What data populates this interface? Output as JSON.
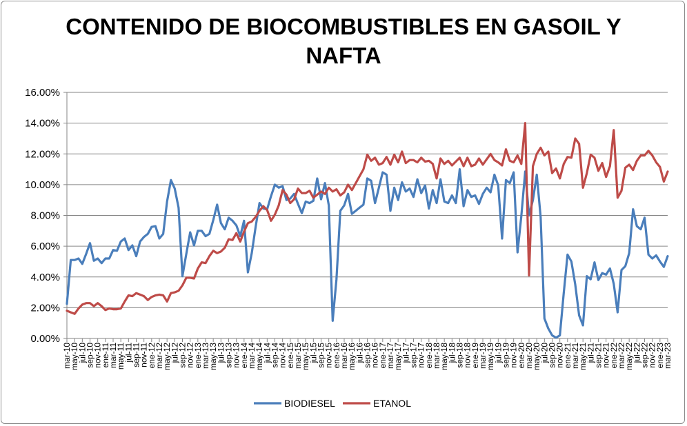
{
  "chart_data": {
    "type": "line",
    "title_lines": [
      "CONTENIDO DE BIOCOMBUSTIBLES EN GASOIL Y",
      "NAFTA"
    ],
    "xlabel": "",
    "ylabel": "",
    "ylim": [
      0,
      16
    ],
    "y_ticks": [
      "0.00%",
      "2.00%",
      "4.00%",
      "6.00%",
      "8.00%",
      "10.00%",
      "12.00%",
      "14.00%",
      "16.00%"
    ],
    "grid": true,
    "legend_position": "bottom",
    "x_tick_every": 2,
    "categories": [
      "mar-10",
      "abr-10",
      "may-10",
      "jun-10",
      "jul-10",
      "ago-10",
      "sep-10",
      "oct-10",
      "nov-10",
      "dic-10",
      "ene-11",
      "feb-11",
      "mar-11",
      "abr-11",
      "may-11",
      "jun-11",
      "jul-11",
      "ago-11",
      "sep-11",
      "oct-11",
      "nov-11",
      "dic-11",
      "ene-12",
      "feb-12",
      "mar-12",
      "abr-12",
      "may-12",
      "jun-12",
      "jul-12",
      "ago-12",
      "sep-12",
      "oct-12",
      "nov-12",
      "dic-12",
      "ene-13",
      "feb-13",
      "mar-13",
      "abr-13",
      "may-13",
      "jun-13",
      "jul-13",
      "ago-13",
      "sep-13",
      "oct-13",
      "nov-13",
      "dic-13",
      "ene-14",
      "feb-14",
      "mar-14",
      "abr-14",
      "may-14",
      "jun-14",
      "jul-14",
      "ago-14",
      "sep-14",
      "oct-14",
      "nov-14",
      "dic-14",
      "ene-15",
      "feb-15",
      "mar-15",
      "abr-15",
      "may-15",
      "jun-15",
      "jul-15",
      "ago-15",
      "sep-15",
      "oct-15",
      "nov-15",
      "dic-15",
      "ene-16",
      "feb-16",
      "mar-16",
      "abr-16",
      "may-16",
      "jun-16",
      "jul-16",
      "ago-16",
      "sep-16",
      "oct-16",
      "nov-16",
      "dic-16",
      "ene-17",
      "feb-17",
      "mar-17",
      "abr-17",
      "may-17",
      "jun-17",
      "jul-17",
      "ago-17",
      "sep-17",
      "oct-17",
      "nov-17",
      "dic-17",
      "ene-18",
      "feb-18",
      "mar-18",
      "abr-18",
      "may-18",
      "jun-18",
      "jul-18",
      "ago-18",
      "sep-18",
      "oct-18",
      "nov-18",
      "dic-18",
      "ene-19",
      "feb-19",
      "mar-19",
      "abr-19",
      "may-19",
      "jun-19",
      "jul-19",
      "ago-19",
      "sep-19",
      "oct-19",
      "nov-19",
      "dic-19",
      "ene-20",
      "feb-20",
      "mar-20",
      "abr-20",
      "may-20",
      "jun-20",
      "jul-20",
      "ago-20",
      "sep-20",
      "oct-20",
      "nov-20",
      "dic-20",
      "ene-21",
      "feb-21",
      "mar-21",
      "abr-21",
      "may-21",
      "jun-21",
      "jul-21",
      "ago-21",
      "sep-21",
      "oct-21",
      "nov-21",
      "dic-21",
      "ene-22",
      "feb-22",
      "mar-22",
      "abr-22",
      "may-22",
      "jun-22",
      "jul-22",
      "ago-22",
      "sep-22",
      "oct-22",
      "nov-22",
      "dic-22",
      "ene-23",
      "feb-23",
      "mar-23"
    ],
    "series": [
      {
        "name": "BIODIESEL",
        "color": "#4a7ebb",
        "unit": "%",
        "values": [
          2.25,
          5.1,
          5.1,
          5.2,
          4.85,
          5.5,
          6.2,
          5.05,
          5.2,
          4.9,
          5.2,
          5.2,
          5.75,
          5.7,
          6.3,
          6.5,
          5.75,
          6.05,
          5.35,
          6.3,
          6.6,
          6.8,
          7.25,
          7.3,
          6.5,
          6.8,
          8.9,
          10.3,
          9.75,
          8.5,
          4.05,
          5.5,
          6.9,
          6.05,
          7.0,
          7.0,
          6.65,
          6.8,
          7.7,
          8.7,
          7.5,
          7.1,
          7.85,
          7.65,
          7.35,
          6.65,
          7.65,
          4.3,
          5.55,
          7.25,
          8.8,
          8.45,
          8.4,
          9.25,
          10.0,
          9.8,
          9.9,
          9.0,
          9.1,
          9.4,
          8.75,
          8.15,
          8.9,
          8.8,
          8.95,
          10.4,
          9.05,
          10.1,
          8.65,
          1.15,
          3.85,
          8.3,
          8.65,
          9.4,
          8.1,
          8.3,
          8.5,
          8.7,
          10.4,
          10.25,
          8.8,
          9.8,
          10.8,
          10.65,
          8.3,
          9.8,
          9.0,
          10.15,
          9.55,
          9.75,
          9.2,
          10.35,
          9.45,
          9.95,
          8.45,
          9.65,
          8.8,
          10.35,
          8.9,
          8.8,
          9.3,
          8.8,
          11.0,
          8.6,
          9.65,
          9.2,
          9.3,
          8.75,
          9.4,
          9.8,
          9.5,
          10.65,
          9.95,
          6.5,
          10.3,
          10.1,
          10.8,
          5.6,
          7.95,
          10.85,
          8.0,
          9.0,
          10.65,
          7.9,
          1.3,
          0.65,
          0.2,
          0.05,
          0.2,
          2.95,
          5.45,
          5.0,
          3.5,
          1.5,
          0.85,
          4.05,
          3.85,
          4.95,
          3.8,
          4.25,
          4.15,
          4.55,
          3.55,
          1.7,
          4.45,
          4.7,
          5.55,
          8.4,
          7.3,
          7.1,
          7.85,
          5.45,
          5.2,
          5.4,
          5.0,
          4.65,
          5.35
        ]
      },
      {
        "name": "ETANOL",
        "color": "#be4b48",
        "unit": "%",
        "values": [
          1.8,
          1.7,
          1.6,
          1.95,
          2.2,
          2.3,
          2.3,
          2.1,
          2.3,
          2.1,
          1.85,
          1.95,
          1.9,
          1.9,
          1.95,
          2.4,
          2.8,
          2.75,
          2.95,
          2.85,
          2.75,
          2.5,
          2.7,
          2.8,
          2.85,
          2.8,
          2.4,
          2.95,
          3.0,
          3.1,
          3.45,
          3.95,
          3.95,
          3.9,
          4.55,
          4.95,
          4.9,
          5.35,
          5.7,
          5.55,
          5.65,
          5.9,
          6.45,
          6.4,
          6.85,
          6.3,
          6.95,
          7.5,
          7.6,
          7.9,
          8.3,
          8.6,
          8.35,
          7.65,
          8.05,
          8.65,
          9.65,
          9.35,
          8.8,
          9.05,
          9.75,
          9.45,
          9.45,
          9.6,
          9.15,
          9.35,
          9.55,
          9.4,
          9.8,
          9.55,
          9.7,
          9.3,
          9.5,
          10.0,
          9.65,
          10.1,
          10.55,
          11.0,
          11.95,
          11.55,
          11.75,
          11.3,
          11.4,
          11.8,
          11.3,
          11.95,
          11.45,
          12.15,
          11.4,
          11.6,
          11.6,
          11.45,
          11.75,
          11.5,
          11.55,
          11.35,
          10.4,
          11.7,
          11.35,
          11.55,
          11.25,
          11.5,
          11.75,
          11.2,
          11.75,
          11.2,
          11.3,
          11.7,
          11.3,
          11.65,
          12.0,
          11.6,
          11.45,
          11.25,
          12.3,
          11.55,
          11.45,
          11.9,
          11.35,
          14.0,
          4.1,
          11.2,
          12.0,
          12.4,
          11.9,
          12.15,
          10.75,
          11.05,
          10.4,
          11.35,
          11.8,
          11.75,
          13.0,
          12.65,
          9.8,
          10.75,
          11.95,
          11.75,
          10.9,
          11.4,
          10.5,
          11.2,
          13.55,
          9.15,
          9.6,
          11.1,
          11.3,
          10.95,
          11.55,
          11.9,
          11.9,
          12.2,
          11.9,
          11.45,
          11.15,
          10.2,
          10.85
        ]
      }
    ]
  }
}
